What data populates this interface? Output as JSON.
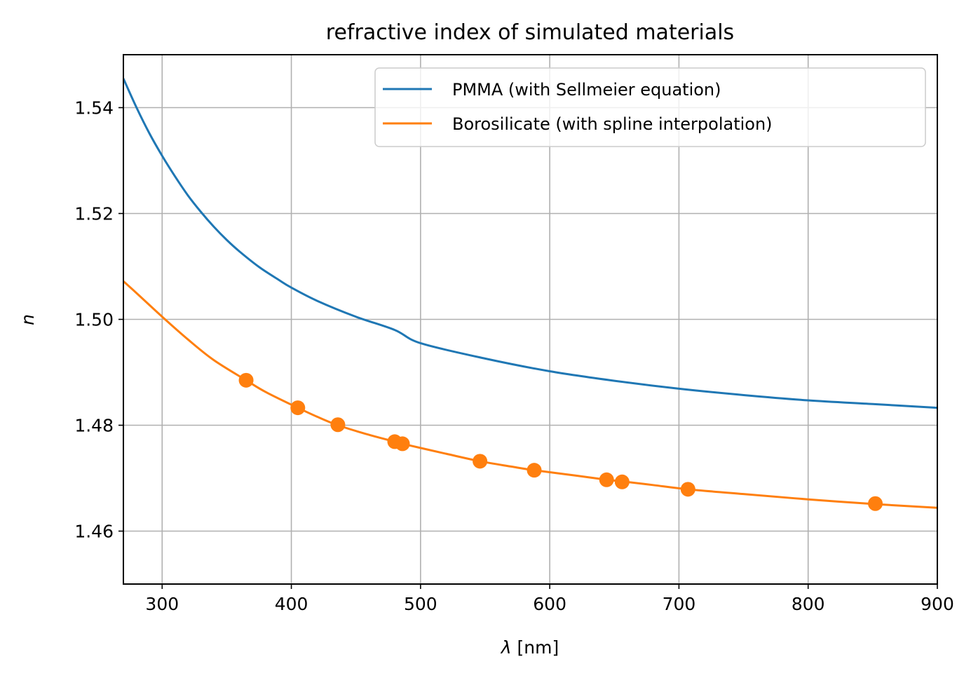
{
  "chart_data": {
    "type": "line",
    "title": "refractive index of simulated materials",
    "xlabel_symbol": "λ",
    "xlabel_unit": "[nm]",
    "ylabel": "n",
    "xlim": [
      270,
      900
    ],
    "ylim": [
      1.45,
      1.55
    ],
    "xticks": [
      300,
      400,
      500,
      600,
      700,
      800,
      900
    ],
    "yticks": [
      1.46,
      1.48,
      1.5,
      1.52,
      1.54
    ],
    "xtick_labels": [
      "300",
      "400",
      "500",
      "600",
      "700",
      "800",
      "900"
    ],
    "ytick_labels": [
      "1.46",
      "1.48",
      "1.50",
      "1.52",
      "1.54"
    ],
    "grid": true,
    "legend_position": "top-right",
    "series": [
      {
        "name": "PMMA (with Sellmeier equation)",
        "color": "#1f77b4",
        "style": "line",
        "x": [
          270,
          280,
          290,
          300,
          310,
          320,
          330,
          340,
          350,
          360,
          375,
          390,
          400,
          420,
          450,
          480,
          500,
          550,
          600,
          650,
          700,
          750,
          800,
          850,
          900
        ],
        "y": [
          1.5455,
          1.5401,
          1.5352,
          1.5309,
          1.527,
          1.5234,
          1.5203,
          1.5175,
          1.515,
          1.5128,
          1.5099,
          1.5075,
          1.506,
          1.5035,
          1.5005,
          1.498,
          1.4955,
          1.4926,
          1.4902,
          1.4884,
          1.4869,
          1.4857,
          1.4847,
          1.484,
          1.4833
        ]
      },
      {
        "name": "Borosilicate (with spline interpolation)",
        "color": "#ff7f0e",
        "style": "line",
        "x": [
          270,
          280,
          300,
          320,
          340,
          365,
          380,
          405,
          420,
          436,
          460,
          480,
          486,
          520,
          546,
          570,
          588,
          620,
          644,
          656,
          680,
          707,
          750,
          800,
          852,
          900
        ],
        "y": [
          1.5072,
          1.505,
          1.5005,
          1.4962,
          1.4923,
          1.4885,
          1.4863,
          1.4833,
          1.4816,
          1.48,
          1.4782,
          1.4769,
          1.4765,
          1.4746,
          1.4732,
          1.4722,
          1.4715,
          1.4705,
          1.4697,
          1.4694,
          1.4687,
          1.4679,
          1.467,
          1.466,
          1.4651,
          1.4644
        ]
      },
      {
        "name": "",
        "color": "#ff7f0e",
        "style": "points",
        "x": [
          365,
          405,
          436,
          480,
          486,
          546,
          588,
          644,
          656,
          707,
          852
        ],
        "y": [
          1.4885,
          1.4833,
          1.4801,
          1.4769,
          1.4765,
          1.4732,
          1.4715,
          1.4697,
          1.4693,
          1.4679,
          1.4652
        ]
      }
    ]
  }
}
